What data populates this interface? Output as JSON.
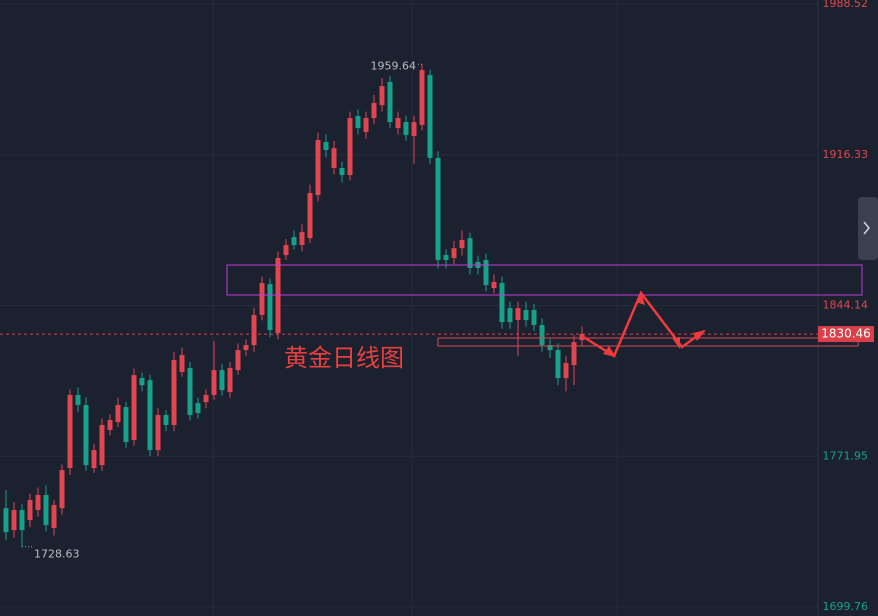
{
  "chart_data": {
    "type": "candlestick",
    "title": "黄金日线图",
    "up_color": "#e0464f",
    "down_color": "#17a08a",
    "ylim": [
      1699.76,
      1988.52
    ],
    "yticks": [
      1699.76,
      1771.95,
      1844.14,
      1916.33,
      1988.52
    ],
    "grid": true,
    "last_price": 1830.46,
    "high_label": 1959.64,
    "low_label": 1728.63,
    "series": [
      {
        "open": [
          1747.1,
          1736.6,
          1746.2,
          1741.4,
          1746.2,
          1753.4,
          1737.6,
          1747.1,
          1766.3,
          1801.3,
          1796.5,
          1766.3,
          1767.7,
          1784.5,
          1788.3,
          1795.5,
          1779.7,
          1809.4,
          1808.4,
          1774.9,
          1791.7,
          1786.9,
          1812.3,
          1814.2,
          1797.4,
          1797.9,
          1801.3,
          1813.2,
          1802.7,
          1813.2,
          1822.8,
          1825.2,
          1839.6,
          1854.4,
          1830.9,
          1868.3,
          1876.9,
          1873.1,
          1876.4,
          1897.0,
          1922.4,
          1910.0,
          1910.0,
          1906.6,
          1934.9,
          1927.2,
          1933.9,
          1940.1,
          1951.2,
          1929.1,
          1932.0,
          1925.3,
          1930.6,
          1954.5,
          1914.8,
          1868.3,
          1866.9,
          1871.6,
          1876.4,
          1865.0,
          1865.9,
          1852.5,
          1854.9,
          1842.9,
          1837.2,
          1842.0,
          1842.0,
          1834.8,
          1825.2,
          1822.8,
          1809.4,
          1815.6,
          1827.6
        ],
        "high": [
          1755.7,
          1750,
          1749,
          1754,
          1757,
          1758,
          1751,
          1768,
          1804,
          1805,
          1800,
          1778,
          1790,
          1792,
          1800,
          1798,
          1814,
          1812,
          1811,
          1795,
          1794,
          1822,
          1824,
          1817,
          1800,
          1804,
          1827,
          1816,
          1817,
          1826,
          1828,
          1843,
          1858,
          1857,
          1870,
          1876,
          1880,
          1883,
          1902,
          1927,
          1926,
          1923,
          1913,
          1937,
          1938,
          1937,
          1945,
          1953,
          1954,
          1937,
          1935,
          1935,
          1959.64,
          1957,
          1918,
          1871,
          1875,
          1880,
          1879,
          1868,
          1869,
          1859,
          1858,
          1846,
          1846,
          1846,
          1845,
          1838,
          1828,
          1826,
          1820,
          1830,
          1834
        ],
        "low": [
          1731.8,
          1733,
          1728.63,
          1738,
          1743,
          1736,
          1734,
          1744,
          1763,
          1793,
          1765,
          1764,
          1765,
          1782,
          1786,
          1776,
          1777,
          1803,
          1772,
          1772,
          1784,
          1784,
          1810,
          1789,
          1790,
          1795,
          1799,
          1801,
          1800,
          1811,
          1820,
          1822,
          1837,
          1829,
          1828,
          1866,
          1871,
          1870,
          1874,
          1894,
          1915,
          1907,
          1903,
          1904,
          1926,
          1924,
          1931,
          1937,
          1929,
          1926,
          1923,
          1912,
          1928,
          1912,
          1862,
          1862,
          1864,
          1868,
          1859,
          1859,
          1851,
          1850,
          1833,
          1833,
          1820,
          1834,
          1832,
          1822,
          1819,
          1806,
          1803,
          1806,
          1825
        ],
        "close": [
          1735.6,
          1746.2,
          1736.6,
          1751.0,
          1753.4,
          1739.0,
          1748.6,
          1765.3,
          1801.3,
          1796.5,
          1767.7,
          1774.9,
          1786.9,
          1789.3,
          1796.5,
          1778.8,
          1810.8,
          1806.0,
          1774.9,
          1791.7,
          1786.9,
          1818.0,
          1820.4,
          1791.7,
          1792.6,
          1801.3,
          1813.2,
          1803.6,
          1814.2,
          1822.8,
          1825.2,
          1839.6,
          1854.9,
          1832.4,
          1866.9,
          1873.1,
          1873.1,
          1879.3,
          1898.0,
          1923.4,
          1918.6,
          1919.5,
          1906.6,
          1933.9,
          1929.1,
          1933.9,
          1941.1,
          1949.2,
          1932.0,
          1933.9,
          1925.8,
          1932.0,
          1956.9,
          1914.8,
          1865.9,
          1865.9,
          1871.6,
          1875.5,
          1862.1,
          1862.1,
          1853.9,
          1855.4,
          1836.2,
          1836.2,
          1842.9,
          1837.2,
          1834.8,
          1825.2,
          1822.8,
          1809.4,
          1816.6,
          1826.6,
          1830.46
        ]
      }
    ]
  }
}
